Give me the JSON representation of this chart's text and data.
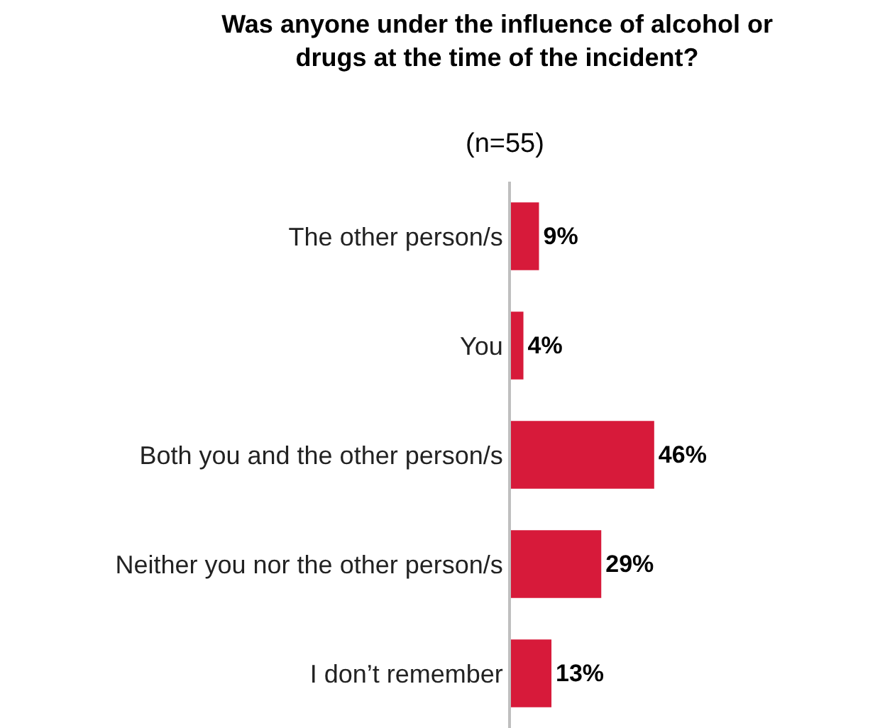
{
  "chart_data": {
    "type": "bar",
    "orientation": "horizontal",
    "title": "Was anyone under the influence of alcohol or drugs at the time of the incident?",
    "subtitle": "(n=55)",
    "categories": [
      "The other person/s",
      "You",
      "Both you and the other person/s",
      "Neither you nor the other person/s",
      "I don’t remember"
    ],
    "values": [
      9,
      4,
      46,
      29,
      13
    ],
    "value_labels": [
      "9%",
      "4%",
      "46%",
      "29%",
      "13%"
    ],
    "color": "#d71a3a",
    "legend": false,
    "tick_labels": "y"
  }
}
